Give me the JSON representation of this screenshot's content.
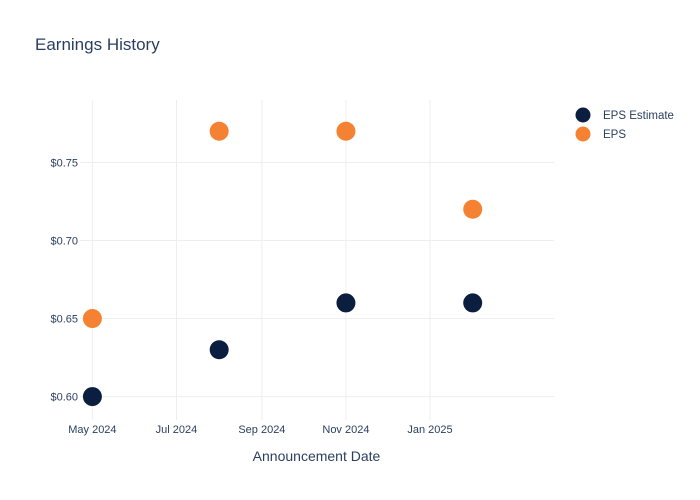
{
  "chart_data": {
    "type": "scatter",
    "title": "Earnings History",
    "xlabel": "Announcement Date",
    "ylabel": "",
    "x_ticks": [
      {
        "label": "May 2024",
        "date": "2024-05-01"
      },
      {
        "label": "Jul 2024",
        "date": "2024-07-01"
      },
      {
        "label": "Sep 2024",
        "date": "2024-09-01"
      },
      {
        "label": "Nov 2024",
        "date": "2024-11-01"
      },
      {
        "label": "Jan 2025",
        "date": "2025-01-01"
      }
    ],
    "y_ticks": [
      {
        "label": "$0.60",
        "value": 0.6
      },
      {
        "label": "$0.65",
        "value": 0.65
      },
      {
        "label": "$0.70",
        "value": 0.7
      },
      {
        "label": "$0.75",
        "value": 0.75
      }
    ],
    "xlim": [
      "2024-04-22",
      "2025-04-01"
    ],
    "ylim": [
      0.585,
      0.79
    ],
    "grid": true,
    "legend_position": "top-right",
    "series": [
      {
        "name": "EPS Estimate",
        "color": "#0b1e3f",
        "points": [
          {
            "x": "2024-05-01",
            "y": 0.6
          },
          {
            "x": "2024-08-01",
            "y": 0.63
          },
          {
            "x": "2024-11-01",
            "y": 0.66
          },
          {
            "x": "2025-02-01",
            "y": 0.66
          }
        ]
      },
      {
        "name": "EPS",
        "color": "#f58232",
        "points": [
          {
            "x": "2024-05-01",
            "y": 0.65
          },
          {
            "x": "2024-08-01",
            "y": 0.77
          },
          {
            "x": "2024-11-01",
            "y": 0.77
          },
          {
            "x": "2025-02-01",
            "y": 0.72
          }
        ]
      }
    ]
  }
}
